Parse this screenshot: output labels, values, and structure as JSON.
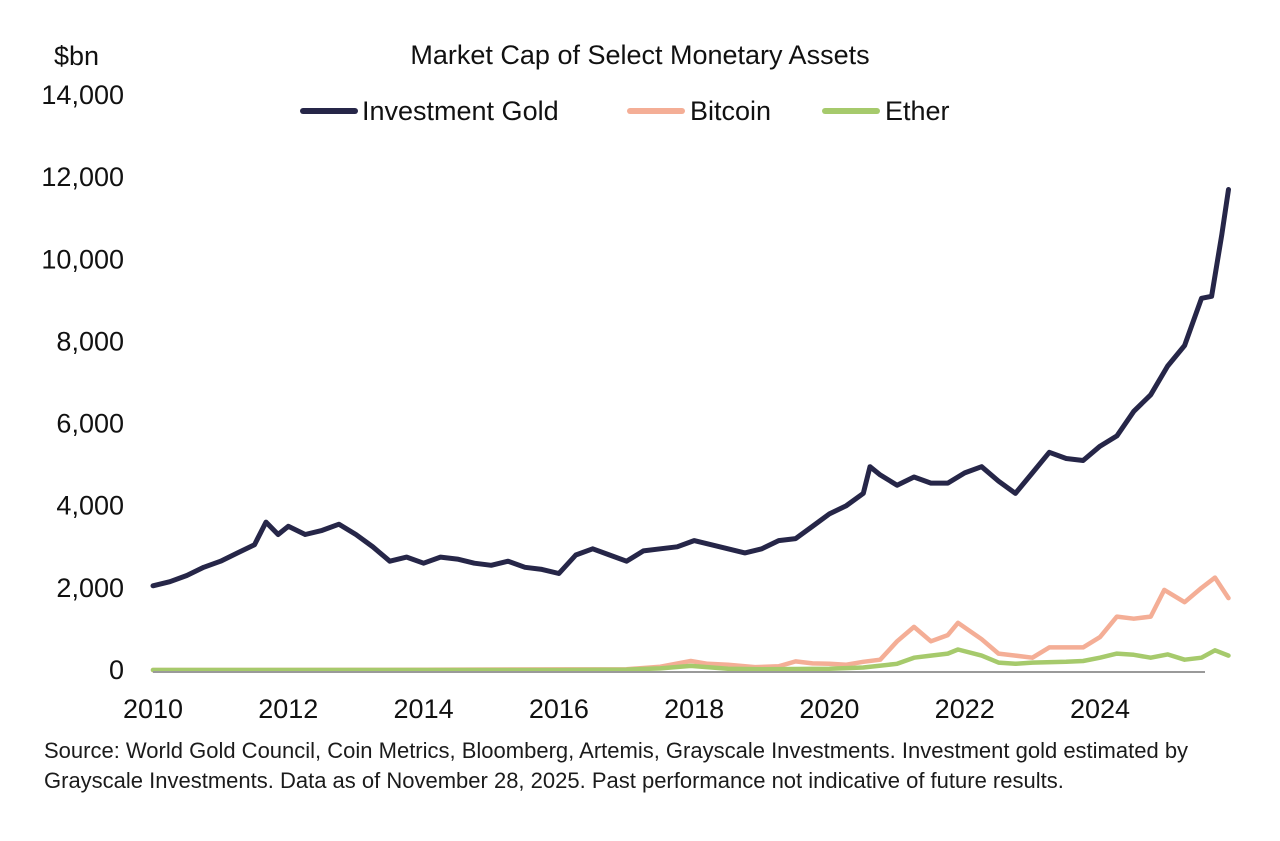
{
  "chart_data": {
    "type": "line",
    "title": "Market Cap of Select Monetary Assets",
    "ylabel": "$bn",
    "xlabel": "",
    "ylim": [
      0,
      14000
    ],
    "xlim": [
      2010,
      2025.9
    ],
    "yticks": [
      0,
      2000,
      4000,
      6000,
      8000,
      10000,
      12000,
      14000
    ],
    "ytick_labels": [
      "0",
      "2,000",
      "4,000",
      "6,000",
      "8,000",
      "10,000",
      "12,000",
      "14,000"
    ],
    "xticks": [
      2010,
      2012,
      2014,
      2016,
      2018,
      2020,
      2022,
      2024
    ],
    "xtick_labels": [
      "2010",
      "2012",
      "2014",
      "2016",
      "2018",
      "2020",
      "2022",
      "2024"
    ],
    "grid": false,
    "legend_position": "top-center",
    "series": [
      {
        "name": "Investment Gold",
        "color": "#262648",
        "x": [
          2010.0,
          2010.25,
          2010.5,
          2010.75,
          2011.0,
          2011.25,
          2011.5,
          2011.67,
          2011.85,
          2012.0,
          2012.25,
          2012.5,
          2012.75,
          2013.0,
          2013.25,
          2013.5,
          2013.75,
          2014.0,
          2014.25,
          2014.5,
          2014.75,
          2015.0,
          2015.25,
          2015.5,
          2015.75,
          2016.0,
          2016.25,
          2016.5,
          2016.75,
          2017.0,
          2017.25,
          2017.5,
          2017.75,
          2018.0,
          2018.25,
          2018.5,
          2018.75,
          2019.0,
          2019.25,
          2019.5,
          2019.75,
          2020.0,
          2020.25,
          2020.5,
          2020.6,
          2020.75,
          2021.0,
          2021.25,
          2021.5,
          2021.75,
          2022.0,
          2022.25,
          2022.5,
          2022.75,
          2023.0,
          2023.25,
          2023.5,
          2023.75,
          2024.0,
          2024.25,
          2024.5,
          2024.75,
          2025.0,
          2025.25,
          2025.5,
          2025.65,
          2025.8,
          2025.9
        ],
        "values": [
          2050,
          2150,
          2300,
          2500,
          2650,
          2850,
          3050,
          3600,
          3300,
          3500,
          3300,
          3400,
          3550,
          3300,
          3000,
          2650,
          2750,
          2600,
          2750,
          2700,
          2600,
          2550,
          2650,
          2500,
          2450,
          2350,
          2800,
          2950,
          2800,
          2650,
          2900,
          2950,
          3000,
          3150,
          3050,
          2950,
          2850,
          2950,
          3150,
          3200,
          3500,
          3800,
          4000,
          4300,
          4950,
          4750,
          4500,
          4700,
          4550,
          4550,
          4800,
          4950,
          4600,
          4300,
          4800,
          5300,
          5150,
          5100,
          5450,
          5700,
          6300,
          6700,
          7400,
          7900,
          9050,
          9100,
          10600,
          11700
        ]
      },
      {
        "name": "Bitcoin",
        "color": "#f4ae96",
        "x": [
          2010.0,
          2013.0,
          2017.0,
          2017.5,
          2017.95,
          2018.2,
          2018.5,
          2018.9,
          2019.25,
          2019.5,
          2019.75,
          2020.0,
          2020.25,
          2020.5,
          2020.75,
          2021.0,
          2021.25,
          2021.5,
          2021.75,
          2021.9,
          2022.25,
          2022.5,
          2022.75,
          2023.0,
          2023.25,
          2023.5,
          2023.75,
          2024.0,
          2024.25,
          2024.5,
          2024.75,
          2024.95,
          2025.25,
          2025.5,
          2025.7,
          2025.9
        ],
        "values": [
          0,
          2,
          20,
          80,
          220,
          150,
          130,
          70,
          90,
          210,
          160,
          150,
          130,
          200,
          250,
          700,
          1050,
          700,
          850,
          1150,
          750,
          400,
          350,
          300,
          550,
          550,
          550,
          800,
          1300,
          1250,
          1300,
          1950,
          1650,
          2000,
          2250,
          1750
        ]
      },
      {
        "name": "Ether",
        "color": "#a6ca6c",
        "x": [
          2010.0,
          2016.0,
          2017.0,
          2017.5,
          2017.95,
          2018.5,
          2019.0,
          2019.5,
          2020.0,
          2020.5,
          2021.0,
          2021.25,
          2021.5,
          2021.75,
          2021.9,
          2022.25,
          2022.5,
          2022.75,
          2023.0,
          2023.5,
          2023.75,
          2024.0,
          2024.25,
          2024.5,
          2024.75,
          2025.0,
          2025.25,
          2025.5,
          2025.7,
          2025.9
        ],
        "values": [
          0,
          0,
          10,
          40,
          100,
          30,
          20,
          25,
          30,
          60,
          150,
          300,
          350,
          400,
          500,
          350,
          180,
          150,
          180,
          200,
          220,
          300,
          400,
          370,
          300,
          380,
          250,
          300,
          480,
          350
        ]
      }
    ],
    "source_note": "Source: World Gold Council, Coin Metrics, Bloomberg, Artemis, Grayscale Investments. Investment gold estimated by Grayscale Investments. Data as of November 28, 2025. Past performance not indicative of future results."
  }
}
